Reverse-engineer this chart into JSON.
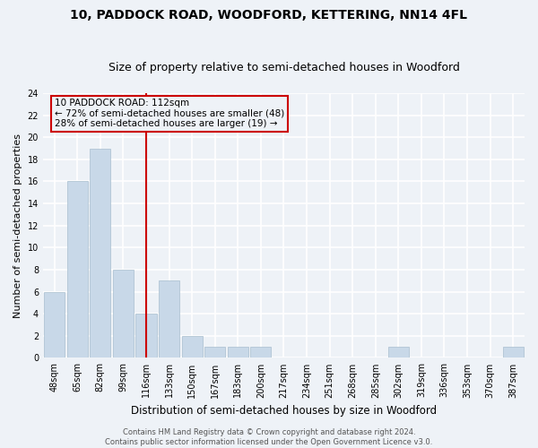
{
  "title": "10, PADDOCK ROAD, WOODFORD, KETTERING, NN14 4FL",
  "subtitle": "Size of property relative to semi-detached houses in Woodford",
  "xlabel": "Distribution of semi-detached houses by size in Woodford",
  "ylabel": "Number of semi-detached properties",
  "footer_line1": "Contains HM Land Registry data © Crown copyright and database right 2024.",
  "footer_line2": "Contains public sector information licensed under the Open Government Licence v3.0.",
  "categories": [
    "48sqm",
    "65sqm",
    "82sqm",
    "99sqm",
    "116sqm",
    "133sqm",
    "150sqm",
    "167sqm",
    "183sqm",
    "200sqm",
    "217sqm",
    "234sqm",
    "251sqm",
    "268sqm",
    "285sqm",
    "302sqm",
    "319sqm",
    "336sqm",
    "353sqm",
    "370sqm",
    "387sqm"
  ],
  "values": [
    6,
    16,
    19,
    8,
    4,
    7,
    2,
    1,
    1,
    1,
    0,
    0,
    0,
    0,
    0,
    1,
    0,
    0,
    0,
    0,
    1
  ],
  "bar_color": "#c8d8e8",
  "bar_edge_color": "#a8bece",
  "red_line_index": 4,
  "annotation_title": "10 PADDOCK ROAD: 112sqm",
  "annotation_line1": "← 72% of semi-detached houses are smaller (48)",
  "annotation_line2": "28% of semi-detached houses are larger (19) →",
  "annotation_color": "#cc0000",
  "ylim": [
    0,
    24
  ],
  "yticks": [
    0,
    2,
    4,
    6,
    8,
    10,
    12,
    14,
    16,
    18,
    20,
    22,
    24
  ],
  "background_color": "#eef2f7",
  "grid_color": "#ffffff",
  "title_fontsize": 10,
  "subtitle_fontsize": 9,
  "ylabel_fontsize": 8,
  "xlabel_fontsize": 8.5,
  "tick_fontsize": 7,
  "annotation_fontsize": 7.5,
  "footer_fontsize": 6
}
